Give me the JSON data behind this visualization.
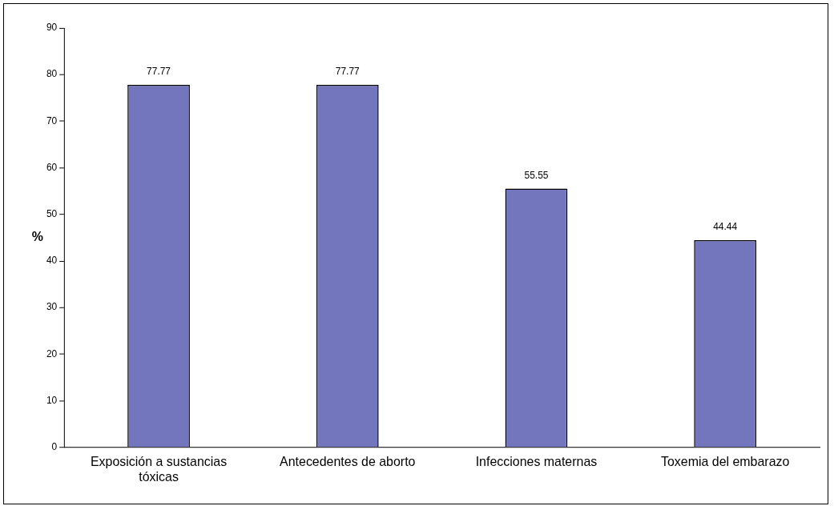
{
  "chart_data": {
    "type": "bar",
    "ylabel": "%",
    "categories": [
      "Exposición a sustancias tóxicas",
      "Antecedentes de aborto",
      "Infecciones maternas",
      "Toxemia del embarazo"
    ],
    "values": [
      77.77,
      77.77,
      55.55,
      44.44
    ],
    "color": "#7376bd",
    "ylim": [
      0,
      90
    ],
    "yticks": [
      0,
      10,
      20,
      30,
      40,
      50,
      60,
      70,
      80,
      90
    ],
    "data_labels": true,
    "grid": false,
    "legend": false
  }
}
